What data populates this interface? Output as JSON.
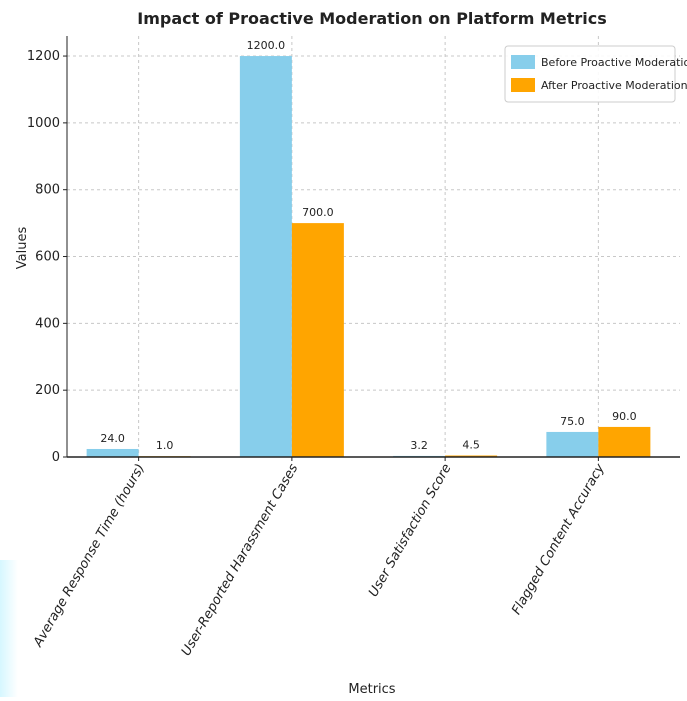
{
  "chart_data": {
    "type": "bar",
    "title": "Impact of Proactive Moderation on Platform Metrics",
    "xlabel": "Metrics",
    "ylabel": "Values",
    "categories": [
      "Average Response Time (hours)",
      "User-Reported Harassment Cases",
      "User Satisfaction Score",
      "Flagged Content Accuracy"
    ],
    "series": [
      {
        "name": "Before Proactive Moderation",
        "color": "#87CEEB",
        "values": [
          24.0,
          1200.0,
          3.2,
          75.0
        ]
      },
      {
        "name": "After Proactive Moderation",
        "color": "#FFA500",
        "values": [
          1.0,
          700.0,
          4.5,
          90.0
        ]
      }
    ],
    "value_labels": [
      [
        "24.0",
        "1200.0",
        "3.2",
        "75.0"
      ],
      [
        "1.0",
        "700.0",
        "4.5",
        "90.0"
      ]
    ],
    "ylim": [
      0,
      1260
    ],
    "yticks": [
      0,
      200,
      400,
      600,
      800,
      1000,
      1200
    ],
    "grid": true,
    "legend": "top-right"
  }
}
